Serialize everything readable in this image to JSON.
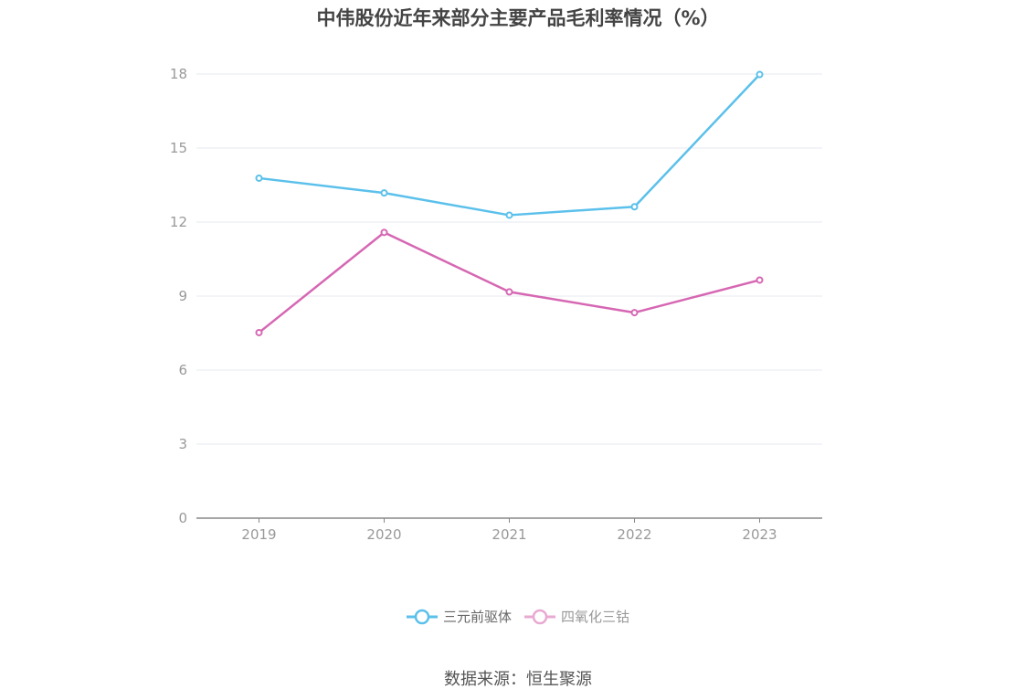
{
  "title": "中伟股份近年来部分主要产品毛利率情况（%）",
  "source": "数据来源：恒生聚源",
  "chart_data": {
    "type": "line",
    "title": "中伟股份近年来部分主要产品毛利率情况（%）",
    "categories": [
      "2019",
      "2020",
      "2021",
      "2022",
      "2023"
    ],
    "ylim": [
      0,
      18
    ],
    "yticks": [
      0,
      3,
      6,
      9,
      12,
      15,
      18
    ],
    "grid": true,
    "legend_position": "bottom",
    "series": [
      {
        "name": "三元前驱体",
        "color": "#5bc0eb",
        "values": [
          13.78,
          13.18,
          12.28,
          12.62,
          17.98
        ]
      },
      {
        "name": "四氧化三钴",
        "color": "#d667b3",
        "values": [
          7.52,
          11.58,
          9.17,
          8.33,
          9.65
        ]
      }
    ]
  },
  "legend": [
    {
      "label": "三元前驱体",
      "color": "#5bc0eb"
    },
    {
      "label": "四氧化三钴",
      "color": "#e8a9d2"
    }
  ]
}
